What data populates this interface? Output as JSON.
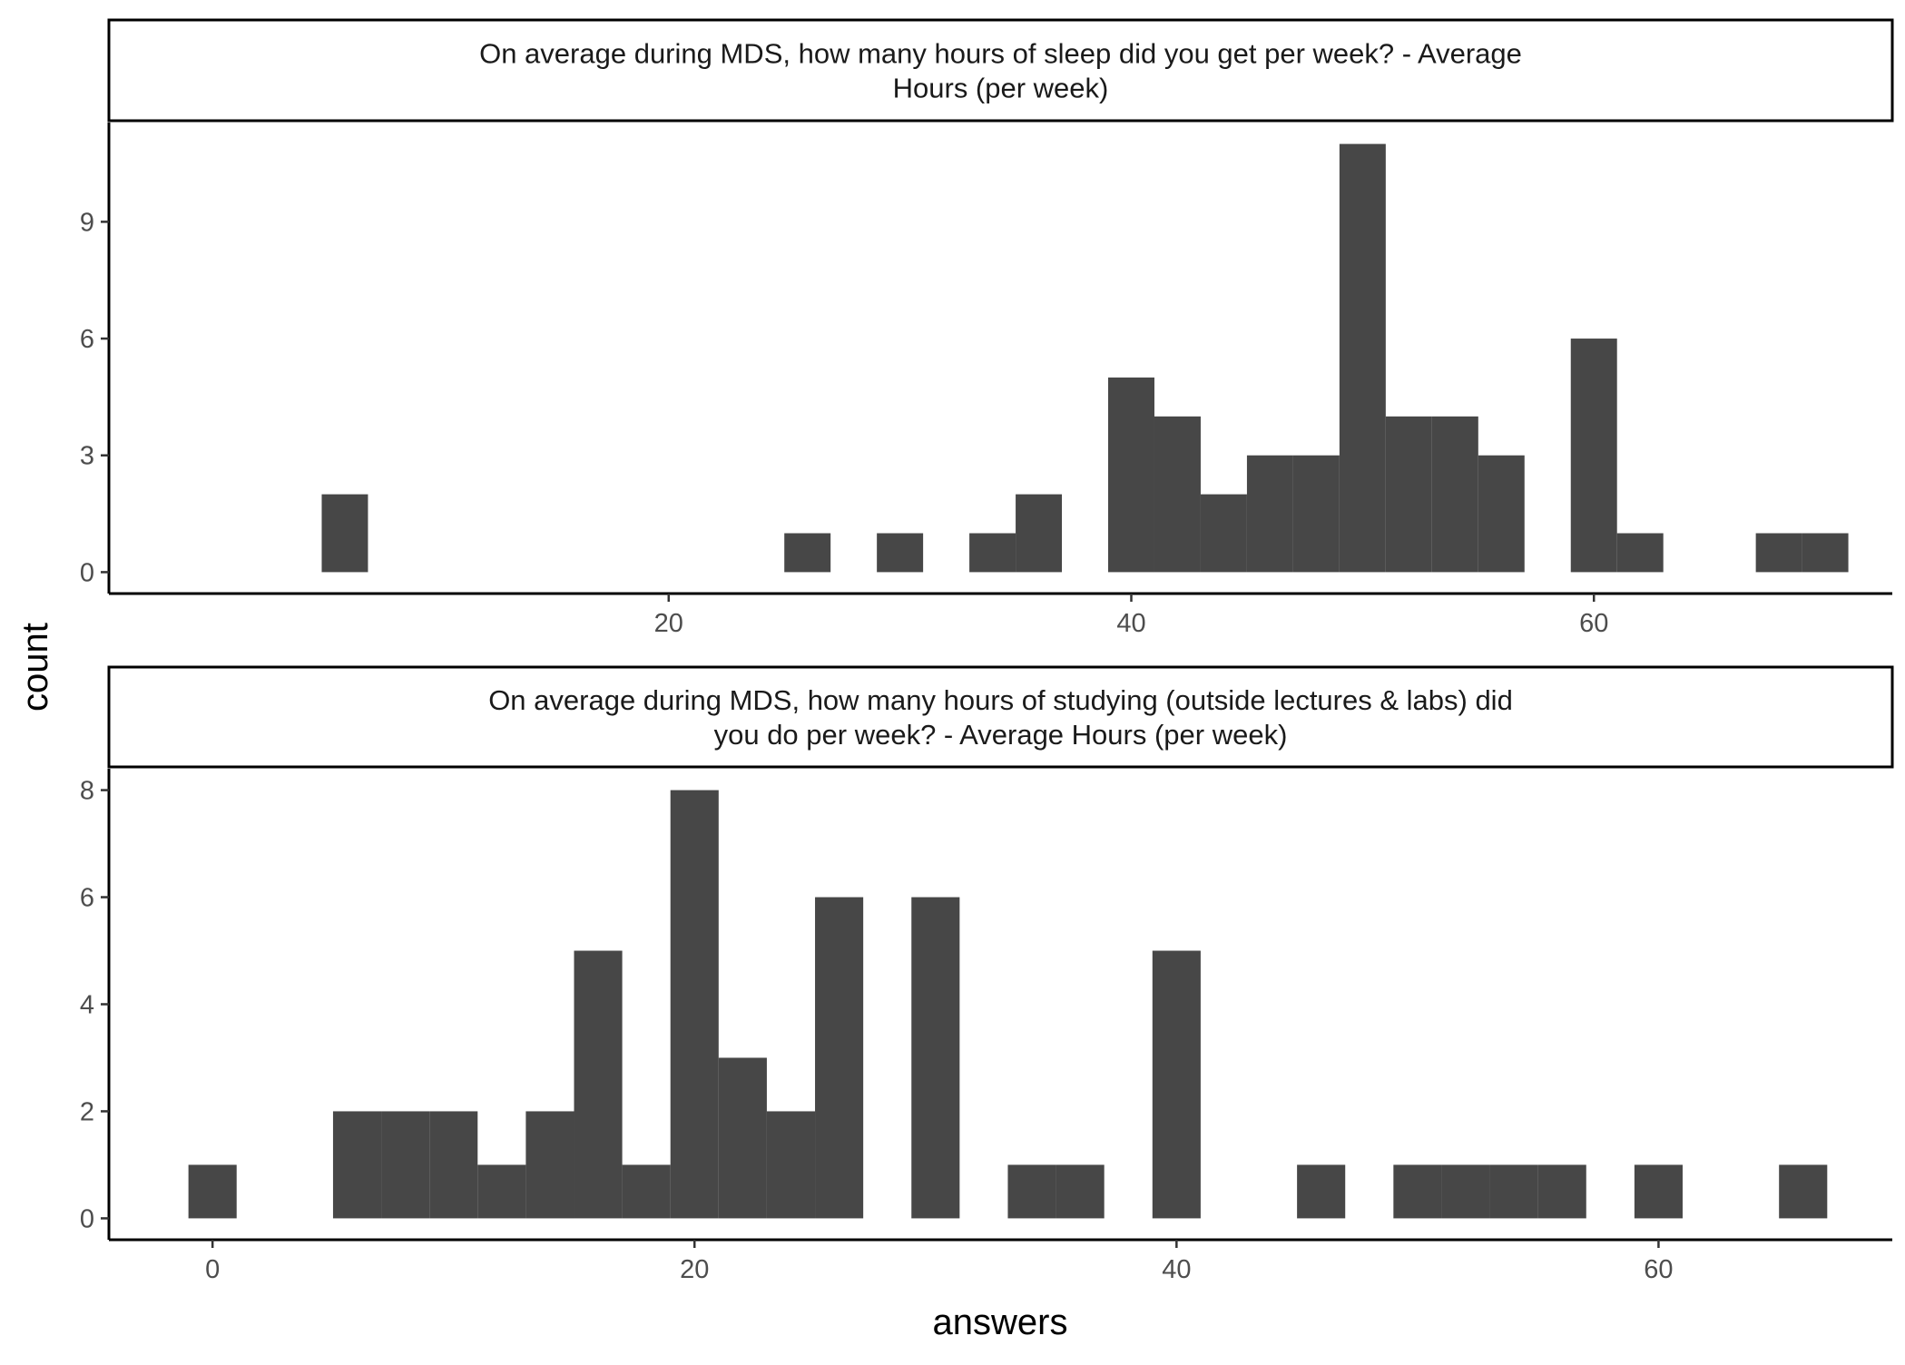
{
  "chart_data": {
    "type": "bar",
    "shared_ylabel": "count",
    "shared_xlabel": "answers",
    "bar_color": "#474747",
    "panels": [
      {
        "title_lines": [
          "On average during MDS, how many hours of sleep did you get per week? - Average",
          "Hours (per week)"
        ],
        "x_ticks": [
          20,
          40,
          60
        ],
        "y_ticks": [
          0,
          3,
          6,
          9
        ],
        "xlim": [
          -4.2,
          72.9
        ],
        "ylim": [
          -0.55,
          11.55
        ],
        "bin_width": 2,
        "bins": [
          {
            "x": 6,
            "count": 2
          },
          {
            "x": 26,
            "count": 1
          },
          {
            "x": 30,
            "count": 1
          },
          {
            "x": 34,
            "count": 1
          },
          {
            "x": 36,
            "count": 2
          },
          {
            "x": 40,
            "count": 5
          },
          {
            "x": 42,
            "count": 4
          },
          {
            "x": 44,
            "count": 2
          },
          {
            "x": 46,
            "count": 3
          },
          {
            "x": 48,
            "count": 3
          },
          {
            "x": 50,
            "count": 11
          },
          {
            "x": 52,
            "count": 4
          },
          {
            "x": 54,
            "count": 4
          },
          {
            "x": 56,
            "count": 3
          },
          {
            "x": 60,
            "count": 6
          },
          {
            "x": 62,
            "count": 1
          },
          {
            "x": 68,
            "count": 1
          },
          {
            "x": 70,
            "count": 1
          }
        ]
      },
      {
        "title_lines": [
          "On average during MDS, how many hours of studying (outside lectures & labs) did",
          "you do per week? - Average Hours (per week)"
        ],
        "x_ticks": [
          0,
          20,
          40,
          60
        ],
        "y_ticks": [
          0,
          2,
          4,
          6,
          8
        ],
        "xlim": [
          -4.3,
          69.7
        ],
        "ylim": [
          -0.4,
          8.4
        ],
        "bin_width": 2,
        "bins": [
          {
            "x": 0,
            "count": 1
          },
          {
            "x": 6,
            "count": 2
          },
          {
            "x": 8,
            "count": 2
          },
          {
            "x": 10,
            "count": 2
          },
          {
            "x": 12,
            "count": 1
          },
          {
            "x": 14,
            "count": 2
          },
          {
            "x": 16,
            "count": 5
          },
          {
            "x": 18,
            "count": 1
          },
          {
            "x": 20,
            "count": 8
          },
          {
            "x": 22,
            "count": 3
          },
          {
            "x": 24,
            "count": 2
          },
          {
            "x": 26,
            "count": 6
          },
          {
            "x": 30,
            "count": 6
          },
          {
            "x": 34,
            "count": 1
          },
          {
            "x": 36,
            "count": 1
          },
          {
            "x": 40,
            "count": 5
          },
          {
            "x": 46,
            "count": 1
          },
          {
            "x": 50,
            "count": 1
          },
          {
            "x": 52,
            "count": 1
          },
          {
            "x": 54,
            "count": 1
          },
          {
            "x": 56,
            "count": 1
          },
          {
            "x": 60,
            "count": 1
          },
          {
            "x": 66,
            "count": 1
          }
        ]
      }
    ]
  }
}
